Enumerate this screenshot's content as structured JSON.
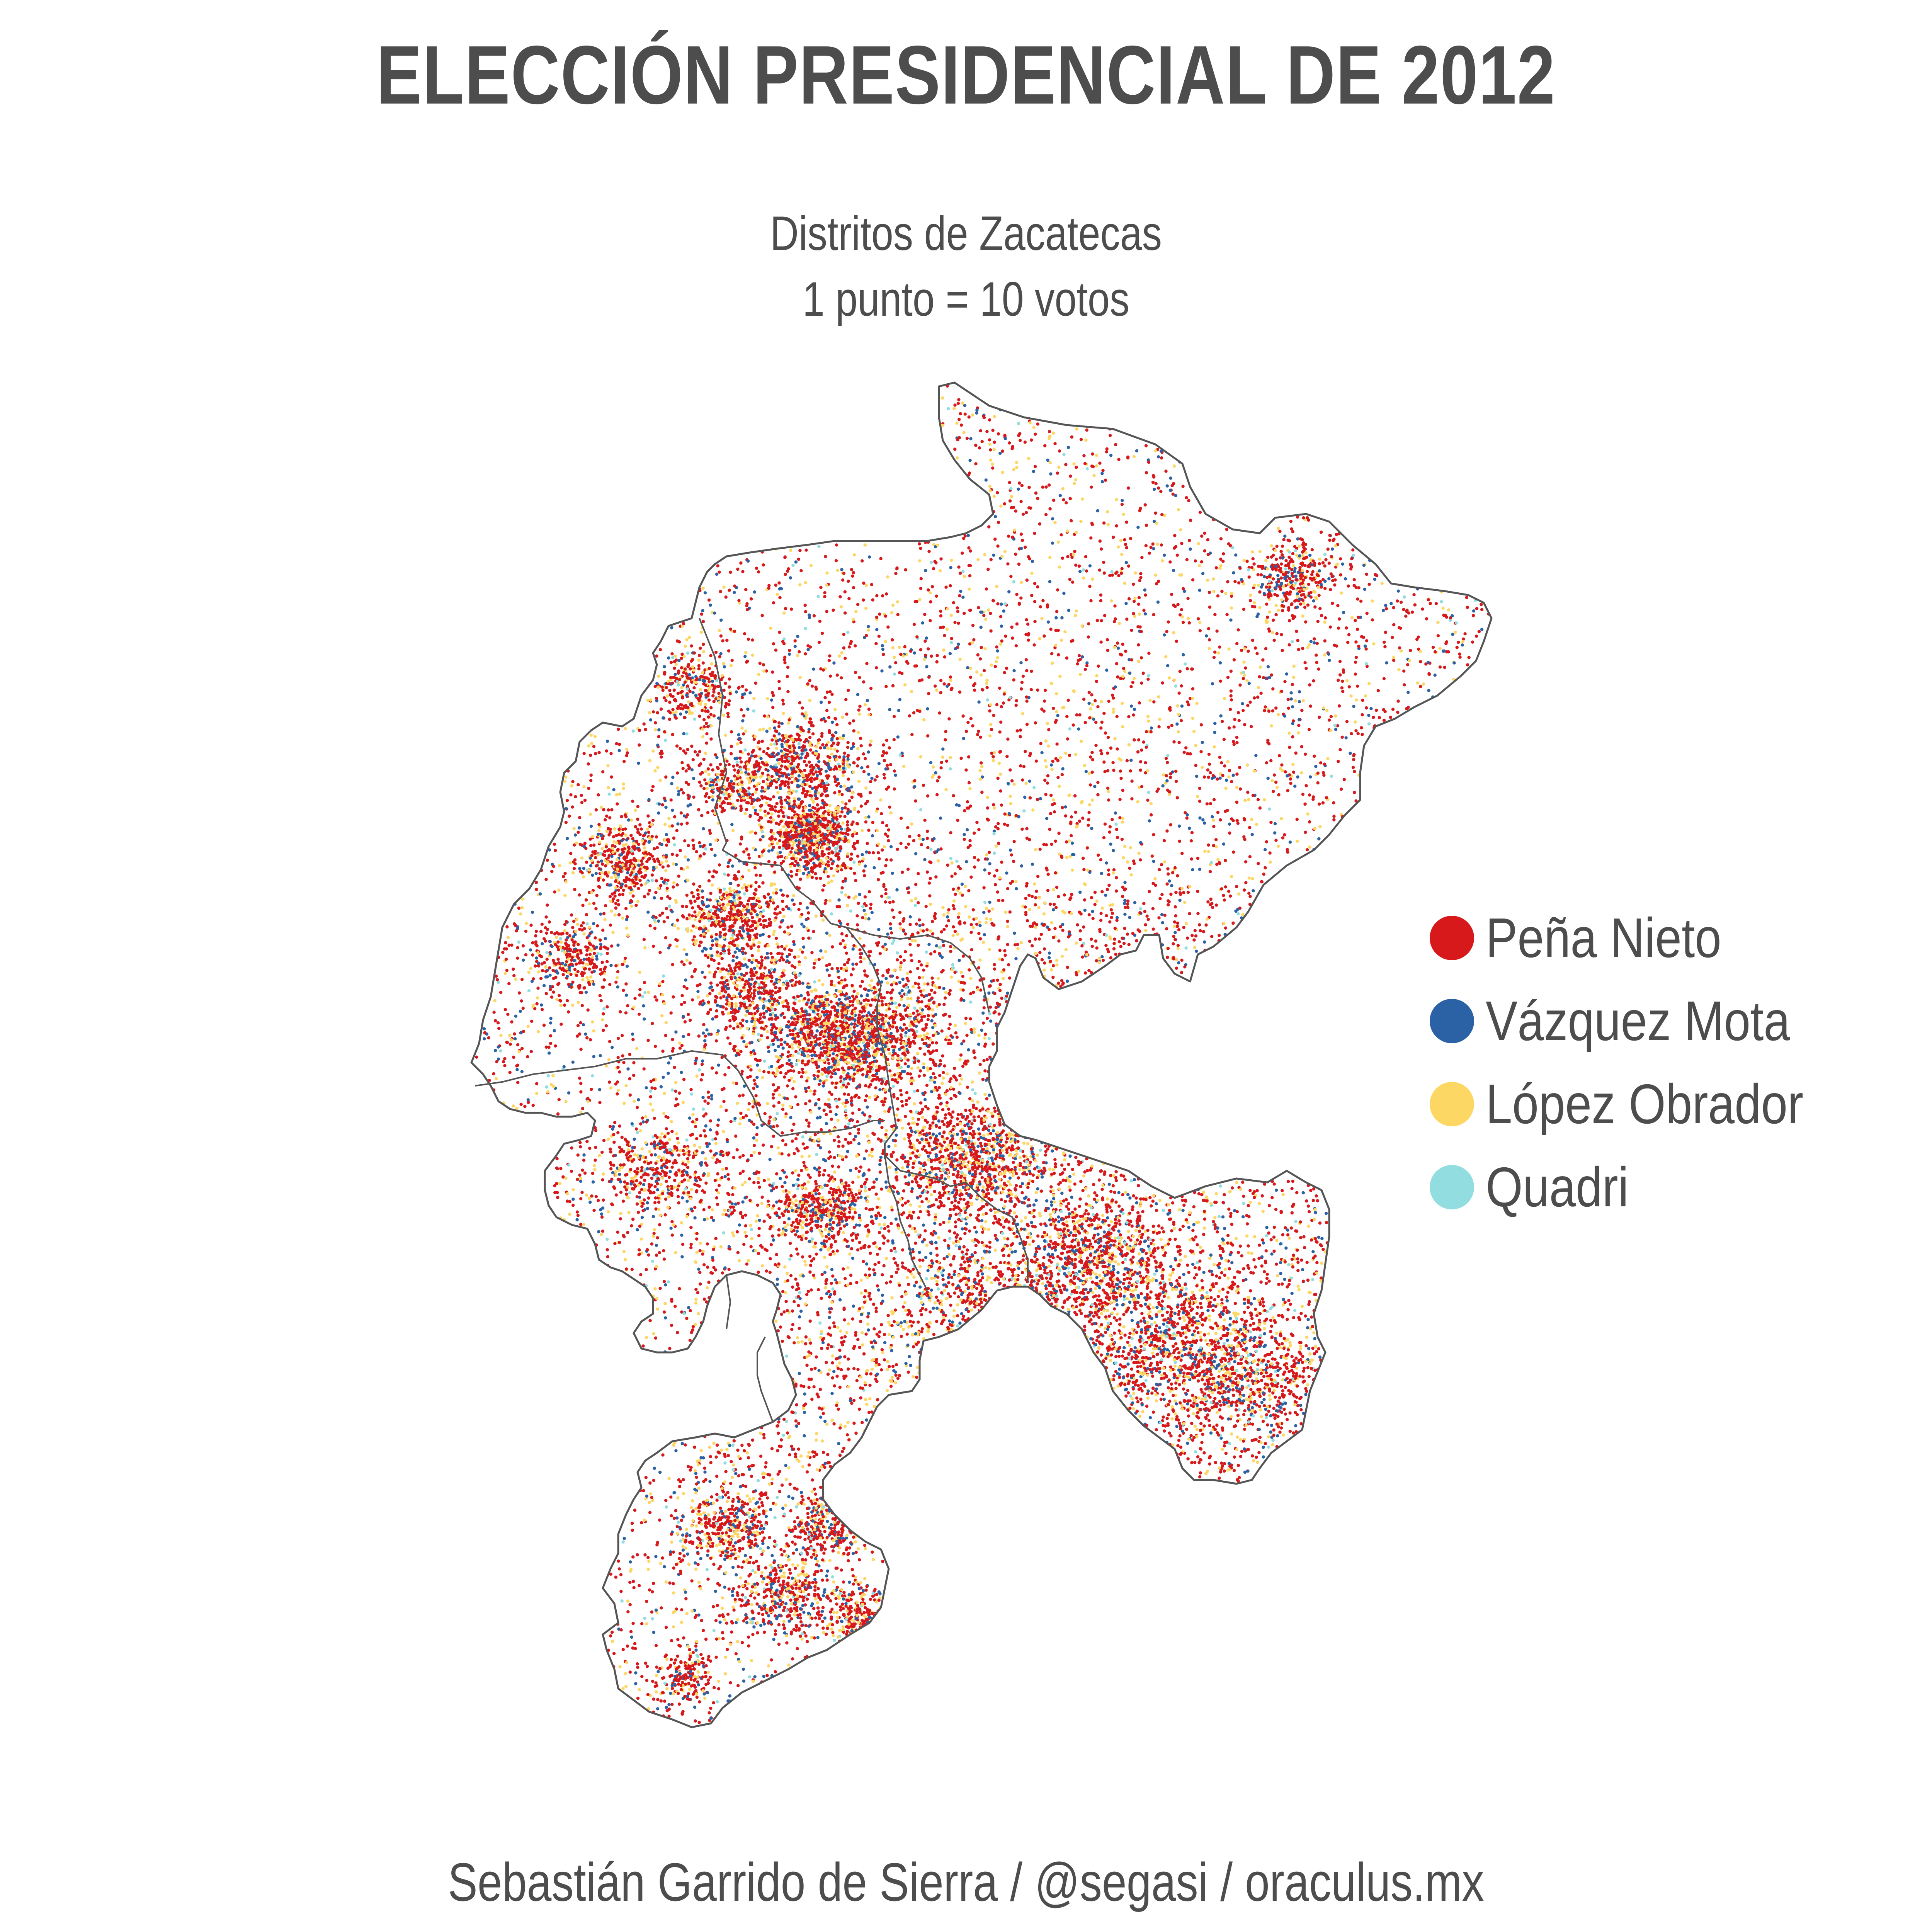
{
  "title": "ELECCIÓN PRESIDENCIAL DE 2012",
  "subtitle": {
    "line1": "Distritos de Zacatecas",
    "line2": "1 punto = 10 votos"
  },
  "legend": [
    {
      "label": "Peña Nieto",
      "color": "#d7191c",
      "density": 0.62
    },
    {
      "label": "Vázquez Mota",
      "color": "#2b62a6",
      "density": 0.14
    },
    {
      "label": "López Obrador",
      "color": "#fdd764",
      "density": 0.21
    },
    {
      "label": "Quadri",
      "color": "#91dde0",
      "density": 0.03
    }
  ],
  "footer": "Sebastián Garrido de Sierra / @segasi / oraculus.mx",
  "colors": {
    "text": "#4d4d4d",
    "border": "#555555",
    "background": "#ffffff"
  }
}
